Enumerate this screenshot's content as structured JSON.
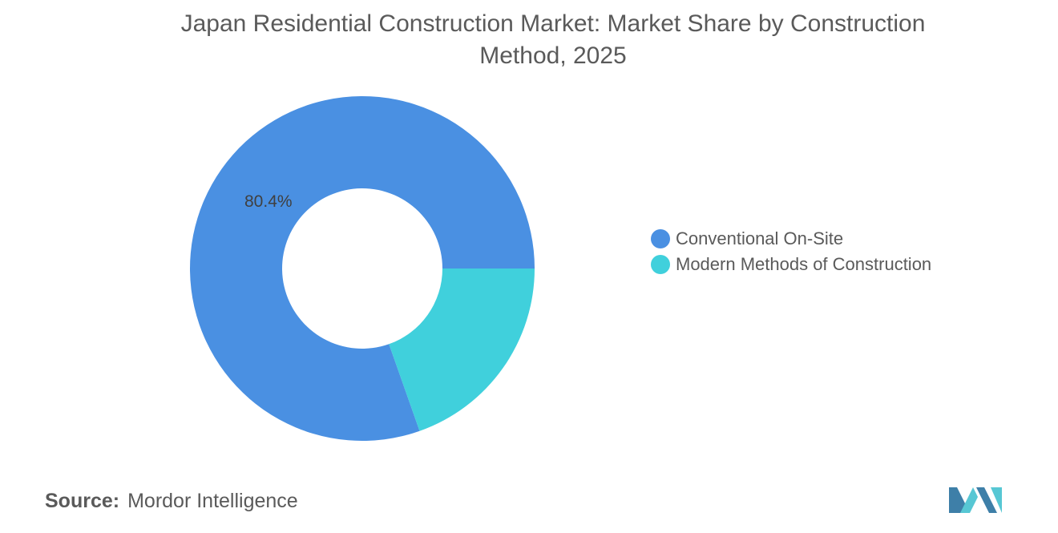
{
  "chart_data": {
    "type": "pie",
    "style": "donut",
    "title": "Japan Residential Construction Market: Market Share by Construction Method, 2025",
    "categories": [
      "Conventional On-Site",
      "Modern Methods of Construction"
    ],
    "values": [
      80.4,
      19.6
    ],
    "data_labels": [
      "80.4%",
      ""
    ],
    "colors": [
      "#4a90e2",
      "#40d0dc"
    ],
    "legend_position": "right"
  },
  "header": {
    "title_line1": "Japan Residential Construction Market: Market Share by Construction",
    "title_line2": "Method, 2025"
  },
  "footer": {
    "source_label": "Source:",
    "source_value": "Mordor Intelligence"
  },
  "logo": {
    "icon": "mordor-intelligence-logo-icon",
    "colors": [
      "#3e7fa8",
      "#57c7d4"
    ]
  }
}
